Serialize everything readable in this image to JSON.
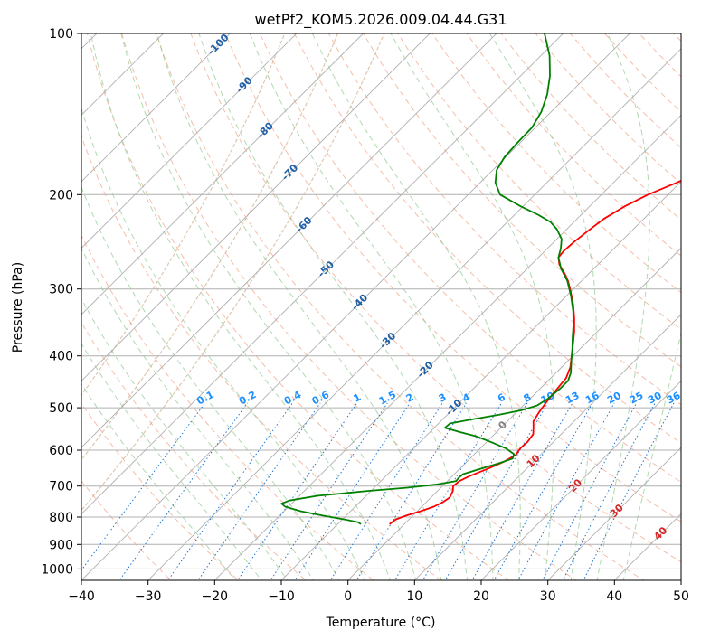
{
  "colors": {
    "background": "#ffffff",
    "grid": "#b0b0b0",
    "dry_adiabat": "#f2a88c",
    "moist_adiabat": "#8fc98f",
    "mixing_ratio": "#1f77d4",
    "mr_label": "#1e90ff",
    "isotherm_label": "#1f5fa8",
    "isotherm_label_warm": "#d62728",
    "isotherm_label_zero": "#808080",
    "temperature": "#ff0000",
    "dewpoint": "#008000",
    "sat_curve": "#c8a27a"
  },
  "chart_data": {
    "type": "line",
    "title": "wetPf2_KOM5.2026.009.04.44.G31",
    "xlabel": "Temperature (°C)",
    "ylabel": "Pressure (hPa)",
    "xlim": [
      -40,
      50
    ],
    "ylim": [
      1050,
      100
    ],
    "y_scale": "log",
    "skew": "skew-T log-p",
    "x_ticks": [
      "−40",
      "−30",
      "−20",
      "−10",
      "0",
      "10",
      "20",
      "30",
      "40",
      "50"
    ],
    "y_ticks": [
      "100",
      "200",
      "300",
      "400",
      "500",
      "600",
      "700",
      "800",
      "900",
      "1000"
    ],
    "x_tick_values": [
      -40,
      -30,
      -20,
      -10,
      0,
      10,
      20,
      30,
      40,
      50
    ],
    "y_tick_values": [
      100,
      200,
      300,
      400,
      500,
      600,
      700,
      800,
      900,
      1000
    ],
    "isotherms": {
      "labels": [
        "-100",
        "-90",
        "-80",
        "-70",
        "-60",
        "-50",
        "-40",
        "-30",
        "-20",
        "-10",
        "0",
        "10",
        "20",
        "30",
        "40"
      ],
      "label_pressure": [
        105,
        125,
        152,
        182,
        228,
        276,
        318,
        375,
        425,
        500,
        540,
        630,
        700,
        780,
        860
      ]
    },
    "mixing_ratio_lines": {
      "labels": [
        "0.1",
        "0.2",
        "0.4",
        "0.6",
        "1",
        "1.5",
        "2",
        "3",
        "4",
        "6",
        "8",
        "10",
        "13",
        "16",
        "20",
        "25",
        "30",
        "36"
      ],
      "values": [
        0.1,
        0.2,
        0.4,
        0.6,
        1,
        1.5,
        2,
        3,
        4,
        6,
        8,
        10,
        13,
        16,
        20,
        25,
        30,
        36
      ],
      "label_pressure": 485
    },
    "series": [
      {
        "name": "Temperature",
        "color": "#ff0000",
        "points": [
          {
            "p": 825,
            "t": -2.2
          },
          {
            "p": 808,
            "t": -2.0
          },
          {
            "p": 795,
            "t": -1.0
          },
          {
            "p": 780,
            "t": 0.5
          },
          {
            "p": 765,
            "t": 1.8
          },
          {
            "p": 750,
            "t": 2.5
          },
          {
            "p": 735,
            "t": 2.8
          },
          {
            "p": 715,
            "t": 2.3
          },
          {
            "p": 700,
            "t": 1.6
          },
          {
            "p": 685,
            "t": 1.8
          },
          {
            "p": 670,
            "t": 2.6
          },
          {
            "p": 650,
            "t": 4.2
          },
          {
            "p": 630,
            "t": 5.6
          },
          {
            "p": 612,
            "t": 6.3
          },
          {
            "p": 595,
            "t": 6.0
          },
          {
            "p": 578,
            "t": 6.1
          },
          {
            "p": 560,
            "t": 5.8
          },
          {
            "p": 545,
            "t": 4.9
          },
          {
            "p": 530,
            "t": 3.9
          },
          {
            "p": 510,
            "t": 3.4
          },
          {
            "p": 490,
            "t": 3.0
          },
          {
            "p": 470,
            "t": 2.7
          },
          {
            "p": 455,
            "t": 2.5
          },
          {
            "p": 440,
            "t": 2.3
          },
          {
            "p": 420,
            "t": 1.3
          },
          {
            "p": 400,
            "t": -0.2
          },
          {
            "p": 380,
            "t": -1.8
          },
          {
            "p": 360,
            "t": -3.5
          },
          {
            "p": 340,
            "t": -5.5
          },
          {
            "p": 320,
            "t": -7.8
          },
          {
            "p": 300,
            "t": -10.5
          },
          {
            "p": 290,
            "t": -12.0
          },
          {
            "p": 280,
            "t": -13.8
          },
          {
            "p": 270,
            "t": -15.8
          },
          {
            "p": 262,
            "t": -17.0
          },
          {
            "p": 255,
            "t": -17.2
          },
          {
            "p": 245,
            "t": -17.0
          },
          {
            "p": 235,
            "t": -16.6
          },
          {
            "p": 222,
            "t": -16.0
          },
          {
            "p": 210,
            "t": -14.7
          },
          {
            "p": 200,
            "t": -13.0
          },
          {
            "p": 190,
            "t": -10.5
          },
          {
            "p": 180,
            "t": -8.2
          },
          {
            "p": 170,
            "t": -6.7
          },
          {
            "p": 160,
            "t": -6.0
          },
          {
            "p": 150,
            "t": -5.8
          },
          {
            "p": 140,
            "t": -5.2
          },
          {
            "p": 130,
            "t": -5.2
          },
          {
            "p": 120,
            "t": -4.8
          },
          {
            "p": 110,
            "t": -4.6
          },
          {
            "p": 100,
            "t": -4.5
          }
        ]
      },
      {
        "name": "Dewpoint",
        "color": "#008000",
        "points": [
          {
            "p": 825,
            "t": -6.5
          },
          {
            "p": 818,
            "t": -7.2
          },
          {
            "p": 808,
            "t": -9.7
          },
          {
            "p": 795,
            "t": -13.5
          },
          {
            "p": 780,
            "t": -17.5
          },
          {
            "p": 765,
            "t": -20.5
          },
          {
            "p": 755,
            "t": -21.5
          },
          {
            "p": 745,
            "t": -20.8
          },
          {
            "p": 730,
            "t": -17.3
          },
          {
            "p": 715,
            "t": -10.5
          },
          {
            "p": 705,
            "t": -5.0
          },
          {
            "p": 695,
            "t": -1.0
          },
          {
            "p": 685,
            "t": 1.3
          },
          {
            "p": 675,
            "t": 1.2
          },
          {
            "p": 665,
            "t": 1.3
          },
          {
            "p": 650,
            "t": 3.1
          },
          {
            "p": 635,
            "t": 5.0
          },
          {
            "p": 622,
            "t": 6.4
          },
          {
            "p": 610,
            "t": 5.9
          },
          {
            "p": 595,
            "t": 3.8
          },
          {
            "p": 580,
            "t": 0.8
          },
          {
            "p": 565,
            "t": -2.5
          },
          {
            "p": 555,
            "t": -5.5
          },
          {
            "p": 545,
            "t": -8.4
          },
          {
            "p": 535,
            "t": -8.3
          },
          {
            "p": 525,
            "t": -5.5
          },
          {
            "p": 515,
            "t": -2.2
          },
          {
            "p": 505,
            "t": 0.5
          },
          {
            "p": 495,
            "t": 2.1
          },
          {
            "p": 480,
            "t": 2.7
          },
          {
            "p": 460,
            "t": 3.0
          },
          {
            "p": 445,
            "t": 3.0
          },
          {
            "p": 430,
            "t": 2.2
          },
          {
            "p": 410,
            "t": 0.6
          },
          {
            "p": 390,
            "t": -1.0
          },
          {
            "p": 370,
            "t": -2.8
          },
          {
            "p": 350,
            "t": -4.6
          },
          {
            "p": 330,
            "t": -6.7
          },
          {
            "p": 310,
            "t": -9.2
          },
          {
            "p": 290,
            "t": -12.1
          },
          {
            "p": 275,
            "t": -14.9
          },
          {
            "p": 262,
            "t": -17.0
          },
          {
            "p": 252,
            "t": -18.0
          },
          {
            "p": 242,
            "t": -19.3
          },
          {
            "p": 232,
            "t": -21.5
          },
          {
            "p": 225,
            "t": -23.5
          },
          {
            "p": 218,
            "t": -26.5
          },
          {
            "p": 210,
            "t": -30.5
          },
          {
            "p": 200,
            "t": -35.2
          },
          {
            "p": 190,
            "t": -37.7
          },
          {
            "p": 180,
            "t": -39.4
          },
          {
            "p": 170,
            "t": -40.2
          },
          {
            "p": 160,
            "t": -40.4
          },
          {
            "p": 150,
            "t": -40.5
          },
          {
            "p": 140,
            "t": -41.5
          },
          {
            "p": 130,
            "t": -43.2
          },
          {
            "p": 120,
            "t": -45.6
          },
          {
            "p": 110,
            "t": -48.7
          },
          {
            "p": 100,
            "t": -52.8
          }
        ]
      }
    ]
  }
}
